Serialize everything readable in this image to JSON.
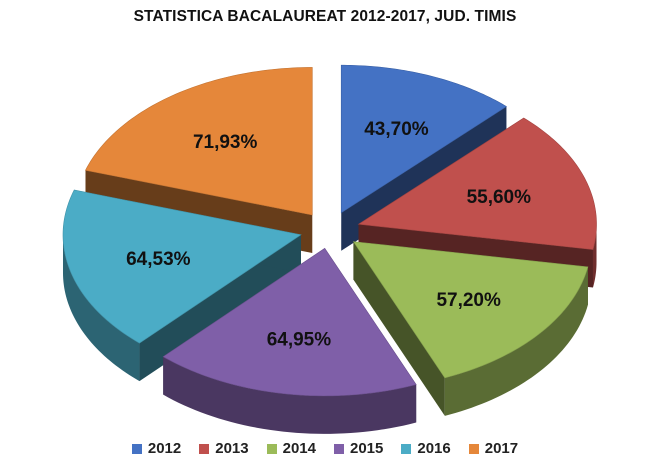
{
  "chart_data": {
    "type": "pie",
    "title": "STATISTICA BACALAUREAT 2012-2017, JUD. TIMIS",
    "categories": [
      "2012",
      "2013",
      "2014",
      "2015",
      "2016",
      "2017"
    ],
    "values": [
      43.7,
      55.6,
      57.2,
      64.95,
      64.53,
      71.93
    ],
    "labels": [
      "43,70%",
      "55,60%",
      "57,20%",
      "64,95%",
      "64,53%",
      "71,93%"
    ],
    "colors": [
      "#4472C4",
      "#C0504D",
      "#9BBB59",
      "#7F5FA8",
      "#4BACC6",
      "#E5873A"
    ],
    "exploded": true,
    "three_d": true,
    "legend_position": "bottom"
  }
}
